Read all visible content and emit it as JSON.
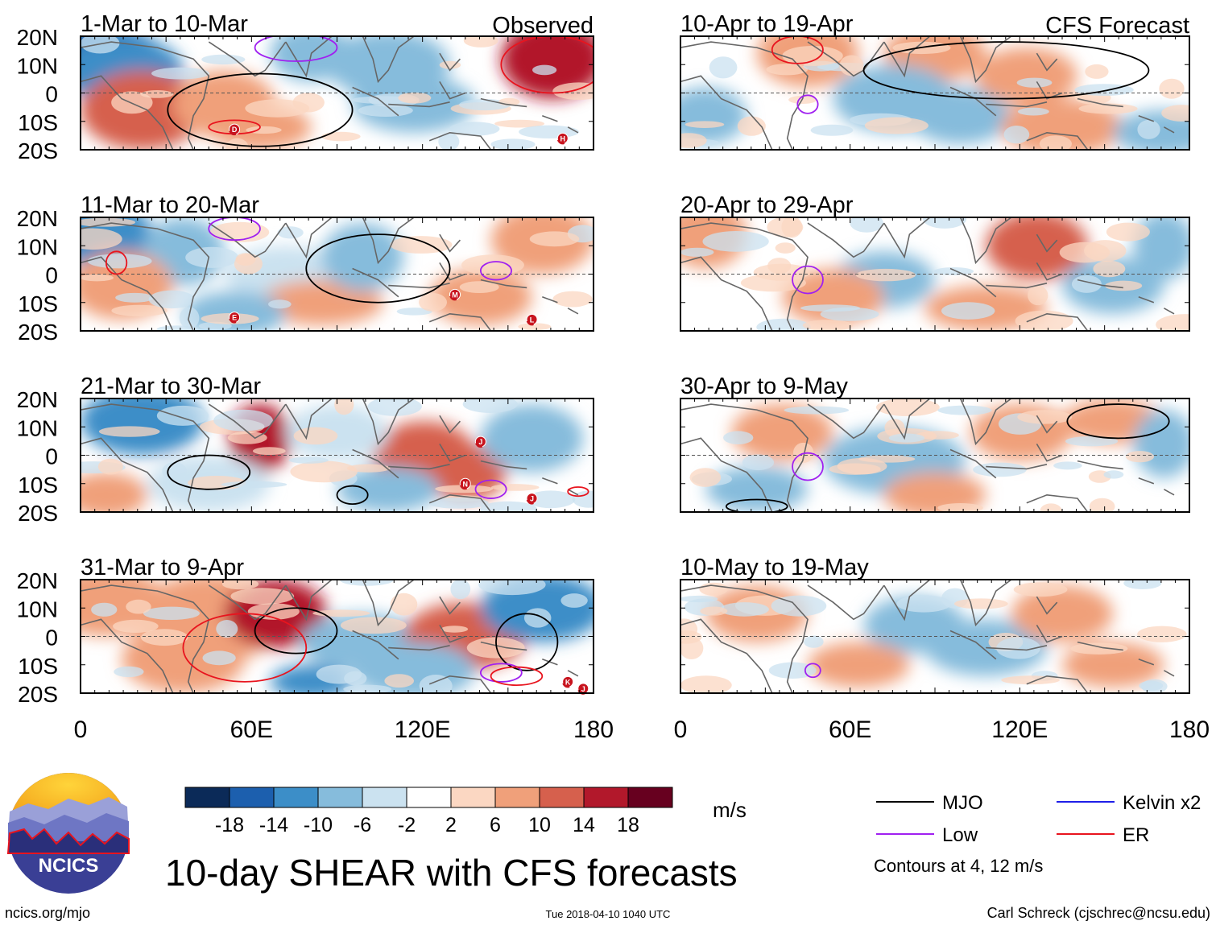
{
  "colors": {
    "mjo": "#000000",
    "low": "#a020f0",
    "kelvin": "#1e1ee8",
    "er": "#e8141e",
    "land": "#666666",
    "scale": [
      "#0b2a58",
      "#1c5fae",
      "#3c8ec8",
      "#86bcdc",
      "#cbe2f0",
      "#ffffff",
      "#fbd7c2",
      "#f0a07a",
      "#d6604d",
      "#b2182b",
      "#67001f"
    ]
  },
  "observed_panels": [
    {
      "title": "1-Mar to 10-Mar",
      "tag": "Observed",
      "cyclones": [
        "D",
        "H"
      ]
    },
    {
      "title": "11-Mar to 20-Mar",
      "tag": "",
      "cyclones": [
        "E",
        "M",
        "L"
      ]
    },
    {
      "title": "21-Mar to 30-Mar",
      "tag": "",
      "cyclones": [
        "J",
        "N",
        "J"
      ]
    },
    {
      "title": "31-Mar to 9-Apr",
      "tag": "",
      "cyclones": [
        "K",
        "J"
      ]
    }
  ],
  "forecast_panels": [
    {
      "title": "10-Apr to 19-Apr",
      "tag": "CFS Forecast"
    },
    {
      "title": "20-Apr to 29-Apr",
      "tag": ""
    },
    {
      "title": "30-Apr to 9-May",
      "tag": ""
    },
    {
      "title": "10-May to 19-May",
      "tag": ""
    }
  ],
  "lat_labels": [
    "20N",
    "10N",
    "0",
    "10S",
    "20S"
  ],
  "lon_labels": [
    "0",
    "60E",
    "120E",
    "180"
  ],
  "colorbar": {
    "ticks": [
      "-18",
      "-14",
      "-10",
      "-6",
      "-2",
      "2",
      "6",
      "10",
      "14",
      "18"
    ],
    "units": "m/s"
  },
  "legend": {
    "items": [
      {
        "label": "MJO",
        "color_key": "mjo"
      },
      {
        "label": "Kelvin x2",
        "color_key": "kelvin"
      },
      {
        "label": "Low",
        "color_key": "low"
      },
      {
        "label": "ER",
        "color_key": "er"
      }
    ],
    "note": "Contours at 4, 12 m/s"
  },
  "logo": {
    "text": "NCICS"
  },
  "title": "10-day SHEAR with CFS forecasts",
  "footer": {
    "url": "ncics.org/mjo",
    "timestamp": "Tue 2018-04-10 1040 UTC",
    "credit": "Carl Schreck (cjschrec@ncsu.edu)"
  }
}
